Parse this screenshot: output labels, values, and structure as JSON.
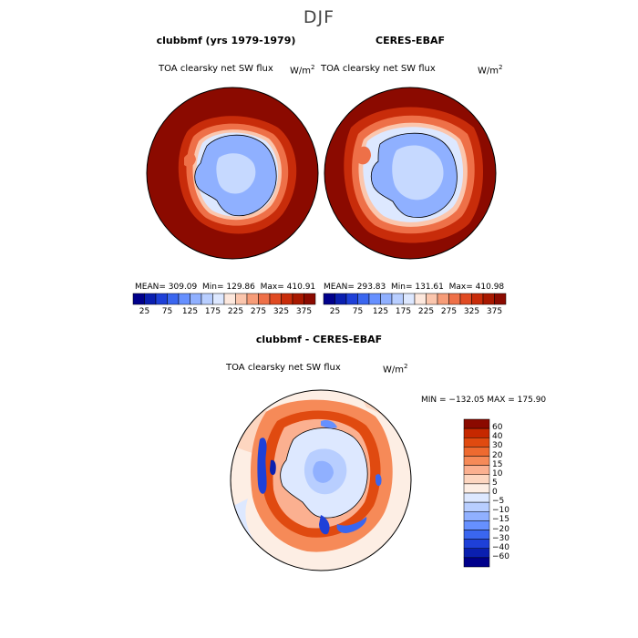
{
  "season": "DJF",
  "colors": {
    "darkred": "#8b0a00",
    "landBlue": "#8fb0ff",
    "ice": "#c6d9ff"
  },
  "panels": [
    {
      "title": "clubbmf (yrs 1979-1979)",
      "variable": "TOA clearsky net SW flux",
      "units": "W/m",
      "units_exp": "2",
      "stats": {
        "mean_label": "MEAN=",
        "mean": "309.09",
        "min_label": "Min=",
        "min": "129.86",
        "max_label": "Max=",
        "max": "410.91"
      }
    },
    {
      "title": "CERES-EBAF",
      "variable": "TOA clearsky net SW flux",
      "units": "W/m",
      "units_exp": "2",
      "stats": {
        "mean_label": "MEAN=",
        "mean": "293.83",
        "min_label": "Min=",
        "min": "131.61",
        "max_label": "Max=",
        "max": "410.98"
      }
    }
  ],
  "top_colorbar": {
    "labels": [
      "25",
      "75",
      "125",
      "175",
      "225",
      "275",
      "325",
      "375"
    ],
    "colors": [
      "#00008b",
      "#0a1fb0",
      "#1e40d8",
      "#3a66ef",
      "#6690ff",
      "#90b0ff",
      "#b8ceff",
      "#dde8ff",
      "#fde8dd",
      "#fbc6ad",
      "#f69c78",
      "#ee7048",
      "#e04a22",
      "#c82c0a",
      "#a81800",
      "#8b0a00"
    ]
  },
  "diff_panel": {
    "title": "clubbmf - CERES-EBAF",
    "variable": "TOA clearsky net SW flux",
    "units": "W/m",
    "units_exp": "2",
    "minmax": "MIN = −132.05  MAX = 175.90",
    "colorbar_labels": [
      "60",
      "40",
      "30",
      "20",
      "15",
      "10",
      "5",
      "0",
      "−5",
      "−10",
      "−15",
      "−20",
      "−30",
      "−40",
      "−60"
    ],
    "colorbar_colors": [
      "#8b0a00",
      "#c62800",
      "#e04a10",
      "#ee6a30",
      "#f68a58",
      "#fbb090",
      "#fdd6c0",
      "#fdeee4",
      "#dde8ff",
      "#b8ceff",
      "#90b0ff",
      "#6690ff",
      "#3a66ef",
      "#1e40d8",
      "#0a1fb0",
      "#00008b"
    ]
  }
}
